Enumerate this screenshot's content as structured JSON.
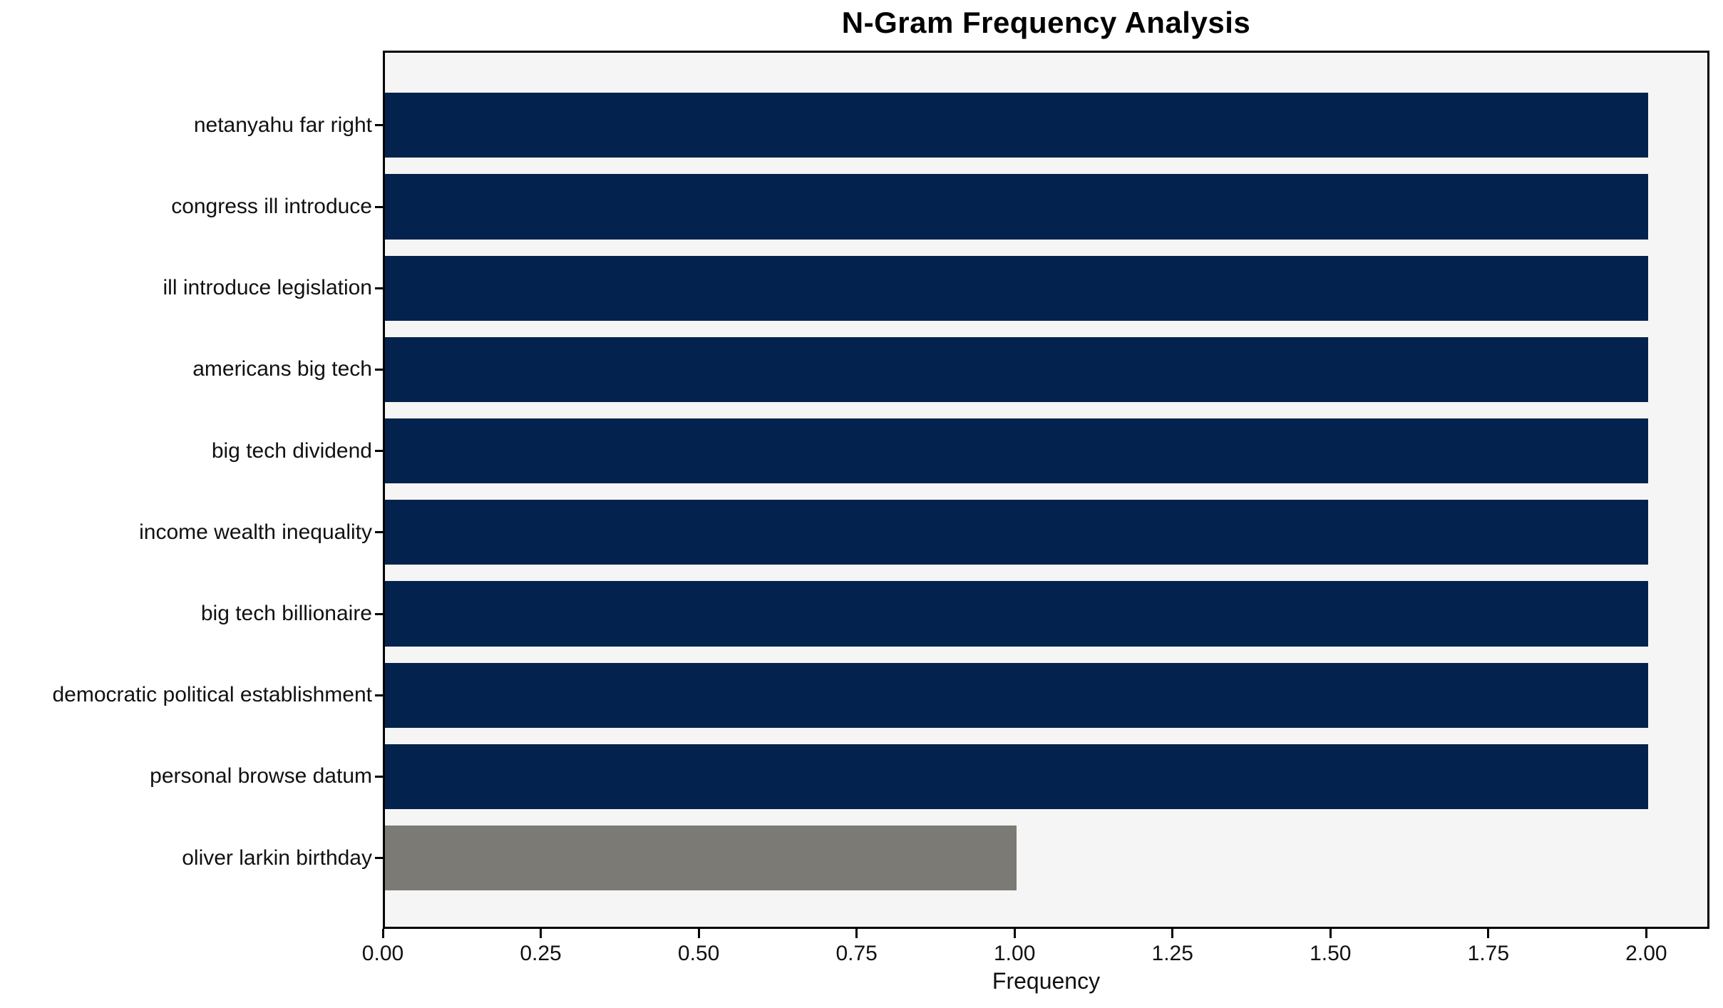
{
  "chart_data": {
    "type": "bar",
    "orientation": "horizontal",
    "title": "N-Gram Frequency Analysis",
    "xlabel": "Frequency",
    "ylabel": "",
    "categories": [
      "netanyahu far right",
      "congress ill introduce",
      "ill introduce legislation",
      "americans big tech",
      "big tech dividend",
      "income wealth inequality",
      "big tech billionaire",
      "democratic political establishment",
      "personal browse datum",
      "oliver larkin birthday"
    ],
    "values": [
      2,
      2,
      2,
      2,
      2,
      2,
      2,
      2,
      2,
      1
    ],
    "bar_colors": [
      "#03224d",
      "#03224d",
      "#03224d",
      "#03224d",
      "#03224d",
      "#03224d",
      "#03224d",
      "#03224d",
      "#03224d",
      "#7b7a75"
    ],
    "xlim": [
      0,
      2.1
    ],
    "xticks": [
      0,
      0.25,
      0.5,
      0.75,
      1.0,
      1.25,
      1.5,
      1.75,
      2.0
    ],
    "xtick_labels": [
      "0.00",
      "0.25",
      "0.50",
      "0.75",
      "1.00",
      "1.25",
      "1.50",
      "1.75",
      "2.00"
    ],
    "plot_background": "#f5f5f5",
    "figure_background": "#ffffff",
    "grid": false,
    "legend": null
  }
}
